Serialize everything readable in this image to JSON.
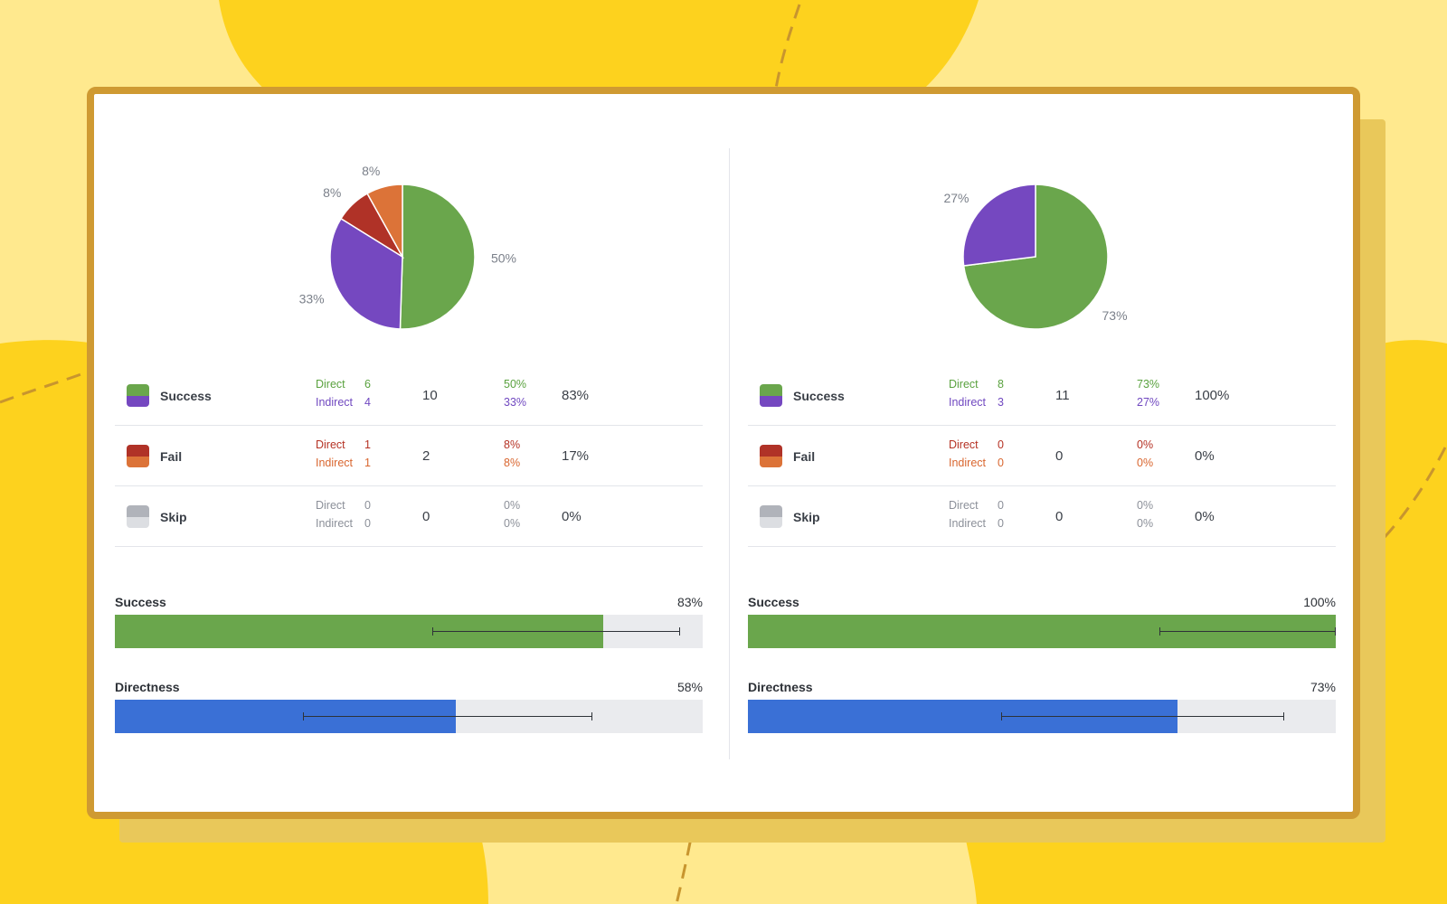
{
  "theme": {
    "background": "#ffe98e",
    "blob": "#fdd21e",
    "card_border": "#cf9a32",
    "success_direct": "#6aa64c",
    "success_indirect": "#7548c0",
    "fail_direct": "#b03227",
    "fail_indirect": "#dc7338",
    "skip_direct": "#b0b3ba",
    "skip_indirect": "#dcdee2",
    "success_bar": "#6aa64c",
    "directness_bar": "#3a70d6"
  },
  "chart_data": [
    {
      "type": "pie",
      "slices": [
        {
          "name": "Success Direct",
          "value": 50,
          "label": "50%",
          "color": "#6aa64c"
        },
        {
          "name": "Success Indirect",
          "value": 33,
          "label": "33%",
          "color": "#7548c0"
        },
        {
          "name": "Fail Direct",
          "value": 8,
          "label": "8%",
          "color": "#b03227"
        },
        {
          "name": "Fail Indirect",
          "value": 8,
          "label": "8%",
          "color": "#dc7338"
        }
      ]
    },
    {
      "type": "pie",
      "slices": [
        {
          "name": "Success Direct",
          "value": 73,
          "label": "73%",
          "color": "#6aa64c"
        },
        {
          "name": "Success Indirect",
          "value": 27,
          "label": "27%",
          "color": "#7548c0"
        }
      ]
    }
  ],
  "panels": [
    {
      "rows": [
        {
          "label": "Success",
          "direct_word": "Direct",
          "direct_count": "6",
          "indirect_word": "Indirect",
          "indirect_count": "4",
          "total": "10",
          "direct_pct": "50%",
          "indirect_pct": "33%",
          "overall": "83%"
        },
        {
          "label": "Fail",
          "direct_word": "Direct",
          "direct_count": "1",
          "indirect_word": "Indirect",
          "indirect_count": "1",
          "total": "2",
          "direct_pct": "8%",
          "indirect_pct": "8%",
          "overall": "17%"
        },
        {
          "label": "Skip",
          "direct_word": "Direct",
          "direct_count": "0",
          "indirect_word": "Indirect",
          "indirect_count": "0",
          "total": "0",
          "direct_pct": "0%",
          "indirect_pct": "0%",
          "overall": "0%"
        }
      ],
      "success": {
        "label": "Success",
        "value_text": "83%",
        "value": 0.83,
        "ci_low": 0.54,
        "ci_high": 0.96
      },
      "directness": {
        "label": "Directness",
        "value_text": "58%",
        "value": 0.58,
        "ci_low": 0.32,
        "ci_high": 0.81
      }
    },
    {
      "rows": [
        {
          "label": "Success",
          "direct_word": "Direct",
          "direct_count": "8",
          "indirect_word": "Indirect",
          "indirect_count": "3",
          "total": "11",
          "direct_pct": "73%",
          "indirect_pct": "27%",
          "overall": "100%"
        },
        {
          "label": "Fail",
          "direct_word": "Direct",
          "direct_count": "0",
          "indirect_word": "Indirect",
          "indirect_count": "0",
          "total": "0",
          "direct_pct": "0%",
          "indirect_pct": "0%",
          "overall": "0%"
        },
        {
          "label": "Skip",
          "direct_word": "Direct",
          "direct_count": "0",
          "indirect_word": "Indirect",
          "indirect_count": "0",
          "total": "0",
          "direct_pct": "0%",
          "indirect_pct": "0%",
          "overall": "0%"
        }
      ],
      "success": {
        "label": "Success",
        "value_text": "100%",
        "value": 1.0,
        "ci_low": 0.7,
        "ci_high": 1.0
      },
      "directness": {
        "label": "Directness",
        "value_text": "73%",
        "value": 0.73,
        "ci_low": 0.43,
        "ci_high": 0.91
      }
    }
  ]
}
